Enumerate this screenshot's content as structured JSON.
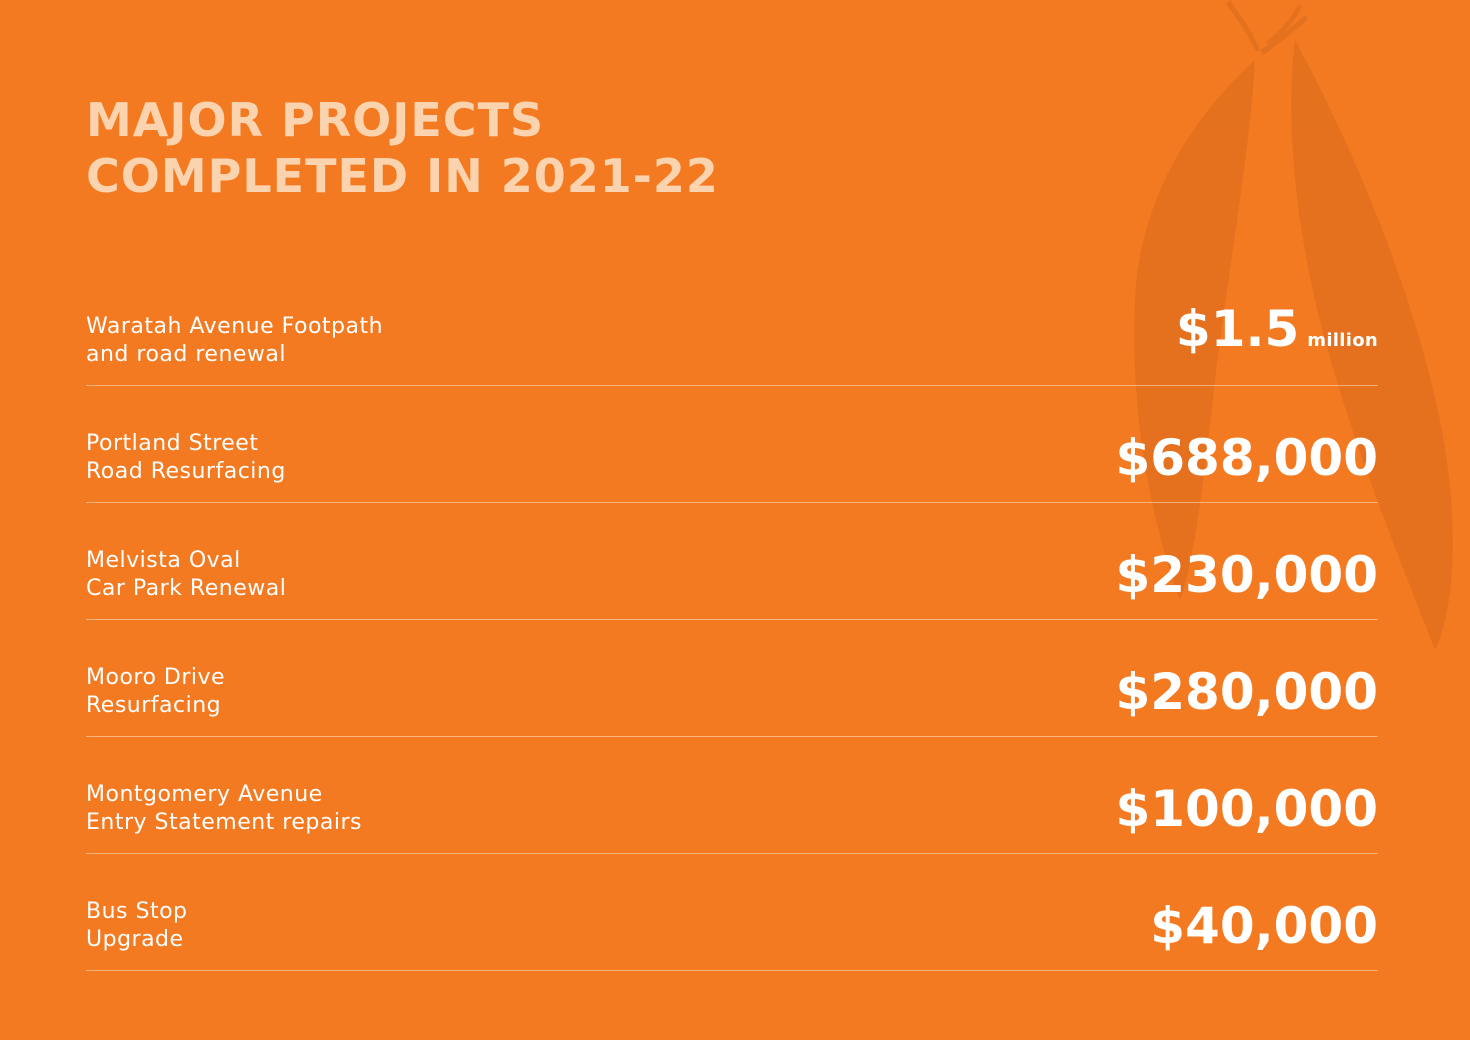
{
  "title": {
    "line1": "MAJOR PROJECTS",
    "line2": "COMPLETED IN 2021-22"
  },
  "colors": {
    "background": "#f47a21",
    "title": "#fbd3ae",
    "text": "#ffffff",
    "divider": "#ffe2c8"
  },
  "decoration": "eucalyptus-leaves-icon",
  "projects": [
    {
      "name_line1": "Waratah Avenue Footpath",
      "name_line2": "and road renewal",
      "amount": "$1.5",
      "unit": "million"
    },
    {
      "name_line1": "Portland Street",
      "name_line2": "Road Resurfacing",
      "amount": "$688,000",
      "unit": ""
    },
    {
      "name_line1": "Melvista Oval",
      "name_line2": "Car Park Renewal",
      "amount": "$230,000",
      "unit": ""
    },
    {
      "name_line1": "Mooro Drive",
      "name_line2": "Resurfacing",
      "amount": "$280,000",
      "unit": ""
    },
    {
      "name_line1": "Montgomery Avenue",
      "name_line2": "Entry Statement repairs",
      "amount": "$100,000",
      "unit": ""
    },
    {
      "name_line1": "Bus Stop",
      "name_line2": "Upgrade",
      "amount": "$40,000",
      "unit": ""
    }
  ]
}
